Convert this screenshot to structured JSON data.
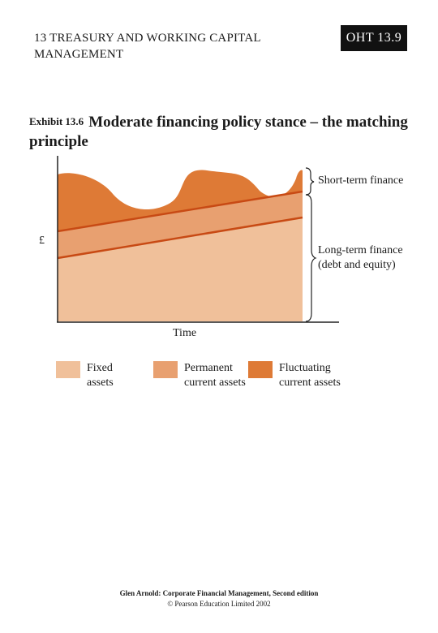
{
  "header": {
    "chapter": "13 TREASURY AND WORKING CAPITAL MANAGEMENT",
    "badge": "OHT 13.9"
  },
  "exhibit": {
    "number": "Exhibit 13.6",
    "title": "Moderate financing policy stance – the matching principle"
  },
  "diagram": {
    "y_axis_label": "£",
    "x_axis_label": "Time",
    "short_term_label": "Short-term finance",
    "long_term_label": "Long-term finance (debt and equity)",
    "colors": {
      "fixed": "#f0c09a",
      "permanent": "#e8a070",
      "fluctuating": "#de7a36",
      "boundary_line": "#c84a14"
    }
  },
  "legend": [
    {
      "label": "Fixed assets",
      "color": "#f0c09a"
    },
    {
      "label": "Permanent current assets",
      "color": "#e8a070"
    },
    {
      "label": "Fluctuating current assets",
      "color": "#de7a36"
    }
  ],
  "footer": {
    "book": "Glen Arnold: Corporate Financial Management, Second edition",
    "copyright": "© Pearson Education Limited 2002"
  }
}
